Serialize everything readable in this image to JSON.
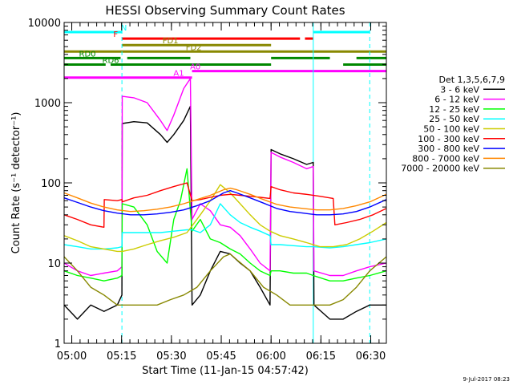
{
  "chart_data": {
    "type": "line",
    "title": "HESSI Observing Summary Count Rates",
    "xlabel": "Start Time (11-Jan-15 04:57:42)",
    "ylabel": "Count Rate (s⁻¹ detector⁻¹)",
    "y_scale": "log",
    "ylim": [
      1,
      10000
    ],
    "xlim_minutes": [
      0,
      97
    ],
    "x_ticks": [
      {
        "label": "05:00",
        "t": 2.3
      },
      {
        "label": "05:15",
        "t": 17.3
      },
      {
        "label": "05:30",
        "t": 32.3
      },
      {
        "label": "05:45",
        "t": 47.3
      },
      {
        "label": "06:00",
        "t": 62.3
      },
      {
        "label": "06:15",
        "t": 77.3
      },
      {
        "label": "06:30",
        "t": 92.3
      }
    ],
    "y_ticks": [
      "1",
      "10",
      "100",
      "1000",
      "10000"
    ],
    "legend_title": "Det 1,3,5,6,7,9",
    "legend_position": "right",
    "series": [
      {
        "name": "3 - 6 keV",
        "color": "#000000",
        "points": [
          [
            0,
            3
          ],
          [
            4,
            2
          ],
          [
            8,
            3
          ],
          [
            12,
            2.5
          ],
          [
            16,
            3
          ],
          [
            17.4,
            4
          ],
          [
            17.5,
            550
          ],
          [
            21,
            580
          ],
          [
            25,
            560
          ],
          [
            29,
            400
          ],
          [
            31,
            320
          ],
          [
            33,
            400
          ],
          [
            36,
            600
          ],
          [
            38,
            900
          ],
          [
            38.5,
            3
          ],
          [
            41,
            4
          ],
          [
            44,
            8
          ],
          [
            47,
            14
          ],
          [
            50,
            13
          ],
          [
            53,
            10
          ],
          [
            56,
            8
          ],
          [
            59,
            5
          ],
          [
            62,
            3
          ],
          [
            62.3,
            260
          ],
          [
            65,
            230
          ],
          [
            69,
            200
          ],
          [
            73,
            170
          ],
          [
            75,
            180
          ],
          [
            75.2,
            3
          ],
          [
            80,
            2
          ],
          [
            84,
            2
          ],
          [
            88,
            2.5
          ],
          [
            92,
            3
          ],
          [
            97,
            3
          ]
        ]
      },
      {
        "name": "6 - 12 keV",
        "color": "#ff00ff",
        "points": [
          [
            0,
            10
          ],
          [
            4,
            8
          ],
          [
            8,
            7
          ],
          [
            12,
            7.5
          ],
          [
            16,
            8
          ],
          [
            17.4,
            9
          ],
          [
            17.5,
            1200
          ],
          [
            21,
            1150
          ],
          [
            25,
            1000
          ],
          [
            29,
            600
          ],
          [
            31,
            450
          ],
          [
            33,
            700
          ],
          [
            36,
            1500
          ],
          [
            38,
            2000
          ],
          [
            38.5,
            35
          ],
          [
            41,
            55
          ],
          [
            44,
            45
          ],
          [
            47,
            30
          ],
          [
            50,
            28
          ],
          [
            53,
            22
          ],
          [
            56,
            15
          ],
          [
            59,
            10
          ],
          [
            62,
            8
          ],
          [
            62.3,
            240
          ],
          [
            65,
            210
          ],
          [
            69,
            180
          ],
          [
            73,
            150
          ],
          [
            75,
            160
          ],
          [
            75.2,
            8
          ],
          [
            80,
            7
          ],
          [
            84,
            7
          ],
          [
            88,
            8
          ],
          [
            92,
            9
          ],
          [
            97,
            10
          ]
        ]
      },
      {
        "name": "12 - 25 keV",
        "color": "#00ff00",
        "points": [
          [
            0,
            8
          ],
          [
            4,
            7
          ],
          [
            8,
            6.5
          ],
          [
            12,
            6
          ],
          [
            16,
            6.5
          ],
          [
            17.4,
            7
          ],
          [
            17.5,
            55
          ],
          [
            21,
            50
          ],
          [
            25,
            30
          ],
          [
            28,
            14
          ],
          [
            31,
            10
          ],
          [
            33,
            35
          ],
          [
            35,
            60
          ],
          [
            37,
            150
          ],
          [
            38.5,
            25
          ],
          [
            41,
            35
          ],
          [
            44,
            20
          ],
          [
            47,
            18
          ],
          [
            50,
            15
          ],
          [
            53,
            13
          ],
          [
            56,
            10
          ],
          [
            59,
            8
          ],
          [
            62,
            7
          ],
          [
            62.3,
            8
          ],
          [
            65,
            8
          ],
          [
            69,
            7.5
          ],
          [
            73,
            7.5
          ],
          [
            75,
            7
          ],
          [
            80,
            6
          ],
          [
            84,
            6
          ],
          [
            88,
            6.5
          ],
          [
            92,
            7
          ],
          [
            97,
            8
          ]
        ]
      },
      {
        "name": "25 - 50 keV",
        "color": "#00ffff",
        "points": [
          [
            0,
            17
          ],
          [
            4,
            16
          ],
          [
            8,
            15
          ],
          [
            12,
            15
          ],
          [
            16,
            15.5
          ],
          [
            17.4,
            16
          ],
          [
            17.5,
            24
          ],
          [
            21,
            24
          ],
          [
            25,
            24
          ],
          [
            29,
            24
          ],
          [
            33,
            25
          ],
          [
            37,
            26
          ],
          [
            38.5,
            26
          ],
          [
            41,
            24
          ],
          [
            44,
            30
          ],
          [
            47,
            55
          ],
          [
            50,
            40
          ],
          [
            53,
            32
          ],
          [
            56,
            28
          ],
          [
            59,
            25
          ],
          [
            62,
            22
          ],
          [
            62.3,
            17
          ],
          [
            65,
            17
          ],
          [
            69,
            16.5
          ],
          [
            73,
            16
          ],
          [
            75,
            16
          ],
          [
            80,
            15.5
          ],
          [
            84,
            16
          ],
          [
            88,
            17
          ],
          [
            92,
            18
          ],
          [
            97,
            20
          ]
        ]
      },
      {
        "name": "50 - 100 keV",
        "color": "#cccc00",
        "points": [
          [
            0,
            22
          ],
          [
            4,
            19
          ],
          [
            8,
            16
          ],
          [
            12,
            15
          ],
          [
            16,
            14
          ],
          [
            17.4,
            14
          ],
          [
            17.5,
            14
          ],
          [
            21,
            15
          ],
          [
            25,
            17
          ],
          [
            29,
            19
          ],
          [
            33,
            21
          ],
          [
            37,
            24
          ],
          [
            41,
            40
          ],
          [
            44,
            60
          ],
          [
            47,
            95
          ],
          [
            50,
            75
          ],
          [
            53,
            55
          ],
          [
            56,
            40
          ],
          [
            59,
            30
          ],
          [
            62,
            25
          ],
          [
            65,
            22
          ],
          [
            69,
            20
          ],
          [
            73,
            18
          ],
          [
            77,
            16
          ],
          [
            81,
            16
          ],
          [
            85,
            17
          ],
          [
            89,
            20
          ],
          [
            93,
            25
          ],
          [
            97,
            32
          ]
        ]
      },
      {
        "name": "100 - 300 keV",
        "color": "#ff0000",
        "points": [
          [
            0,
            40
          ],
          [
            4,
            35
          ],
          [
            8,
            30
          ],
          [
            12,
            28
          ],
          [
            12.1,
            62
          ],
          [
            16,
            60
          ],
          [
            17.4,
            62
          ],
          [
            17.5,
            58
          ],
          [
            21,
            65
          ],
          [
            25,
            70
          ],
          [
            29,
            80
          ],
          [
            33,
            90
          ],
          [
            37,
            100
          ],
          [
            38.5,
            60
          ],
          [
            41,
            62
          ],
          [
            44,
            66
          ],
          [
            47,
            70
          ],
          [
            50,
            72
          ],
          [
            53,
            70
          ],
          [
            56,
            68
          ],
          [
            59,
            66
          ],
          [
            62,
            64
          ],
          [
            62.3,
            90
          ],
          [
            65,
            82
          ],
          [
            69,
            75
          ],
          [
            73,
            72
          ],
          [
            77,
            68
          ],
          [
            81,
            64
          ],
          [
            81.5,
            30
          ],
          [
            85,
            32
          ],
          [
            89,
            35
          ],
          [
            93,
            40
          ],
          [
            97,
            48
          ]
        ]
      },
      {
        "name": "300 - 800 keV",
        "color": "#0000ff",
        "points": [
          [
            0,
            65
          ],
          [
            4,
            57
          ],
          [
            8,
            50
          ],
          [
            12,
            45
          ],
          [
            16,
            42
          ],
          [
            20,
            40
          ],
          [
            24,
            40
          ],
          [
            28,
            41
          ],
          [
            32,
            43
          ],
          [
            36,
            46
          ],
          [
            40,
            52
          ],
          [
            44,
            60
          ],
          [
            48,
            75
          ],
          [
            50,
            80
          ],
          [
            52,
            75
          ],
          [
            56,
            65
          ],
          [
            60,
            56
          ],
          [
            64,
            48
          ],
          [
            68,
            44
          ],
          [
            72,
            42
          ],
          [
            76,
            40
          ],
          [
            80,
            40
          ],
          [
            84,
            41
          ],
          [
            88,
            44
          ],
          [
            92,
            50
          ],
          [
            97,
            62
          ]
        ]
      },
      {
        "name": "800 - 7000 keV",
        "color": "#ff8800",
        "points": [
          [
            0,
            75
          ],
          [
            4,
            65
          ],
          [
            8,
            56
          ],
          [
            12,
            50
          ],
          [
            16,
            46
          ],
          [
            20,
            44
          ],
          [
            24,
            45
          ],
          [
            28,
            47
          ],
          [
            32,
            50
          ],
          [
            36,
            55
          ],
          [
            40,
            62
          ],
          [
            44,
            70
          ],
          [
            48,
            82
          ],
          [
            50,
            86
          ],
          [
            52,
            82
          ],
          [
            56,
            72
          ],
          [
            60,
            62
          ],
          [
            64,
            54
          ],
          [
            68,
            50
          ],
          [
            72,
            48
          ],
          [
            76,
            46
          ],
          [
            80,
            46
          ],
          [
            84,
            48
          ],
          [
            88,
            52
          ],
          [
            92,
            58
          ],
          [
            97,
            72
          ]
        ]
      },
      {
        "name": "7000 - 20000 keV",
        "color": "#888800",
        "points": [
          [
            0,
            12
          ],
          [
            4,
            8
          ],
          [
            8,
            5
          ],
          [
            12,
            4
          ],
          [
            16,
            3
          ],
          [
            20,
            3
          ],
          [
            24,
            3
          ],
          [
            28,
            3
          ],
          [
            32,
            3.5
          ],
          [
            36,
            4
          ],
          [
            40,
            5
          ],
          [
            44,
            8
          ],
          [
            48,
            12
          ],
          [
            50,
            13
          ],
          [
            52,
            11
          ],
          [
            56,
            8
          ],
          [
            60,
            5
          ],
          [
            64,
            4
          ],
          [
            68,
            3
          ],
          [
            72,
            3
          ],
          [
            76,
            3
          ],
          [
            80,
            3
          ],
          [
            84,
            3.5
          ],
          [
            88,
            5
          ],
          [
            92,
            8
          ],
          [
            97,
            12
          ]
        ]
      }
    ],
    "flag_bars": [
      {
        "label": "N",
        "color": "#00ffff",
        "segments": [
          [
            0,
            17.4
          ],
          [
            75,
            92
          ]
        ],
        "level": 0,
        "label_t": 18
      },
      {
        "label": "F",
        "color": "#ff0000",
        "segments": [
          [
            17.4,
            71
          ],
          [
            72.5,
            75
          ]
        ],
        "level": 1,
        "label_t": 15.5
      },
      {
        "label": "FD1",
        "color": "#888800",
        "segments": [
          [
            17.4,
            62.3
          ]
        ],
        "level": 2,
        "label_t": 32
      },
      {
        "label": "FD2",
        "color": "#888800",
        "segments": [
          [
            0,
            97
          ]
        ],
        "level": 3,
        "label_t": 39
      },
      {
        "label": "RD0",
        "color": "#008800",
        "segments": [
          [
            0,
            17
          ],
          [
            19,
            38
          ],
          [
            62.3,
            80
          ],
          [
            88,
            97
          ]
        ],
        "level": 4,
        "label_t": 7
      },
      {
        "label": "RD6",
        "color": "#008800",
        "segments": [
          [
            0,
            12.5
          ],
          [
            14,
            62.3
          ],
          [
            84,
            97
          ]
        ],
        "level": 5,
        "label_t": 14
      },
      {
        "label": "A0",
        "color": "#ff00ff",
        "segments": [
          [
            38.5,
            97
          ]
        ],
        "level": 6,
        "label_t": 39.5
      },
      {
        "label": "A1",
        "color": "#ff00ff",
        "segments": [
          [
            0,
            38.5
          ]
        ],
        "level": 7,
        "label_t": 34.5
      }
    ],
    "vertical_markers": [
      {
        "t": 0,
        "color": "#00ffff",
        "style": "solid"
      },
      {
        "t": 17.4,
        "color": "#00ffff",
        "style": "dashed"
      },
      {
        "t": 75,
        "color": "#00ffff",
        "style": "solid"
      },
      {
        "t": 92,
        "color": "#00ffff",
        "style": "dashed"
      }
    ]
  },
  "footer": {
    "date": "9-Jul-2017 08:23"
  }
}
